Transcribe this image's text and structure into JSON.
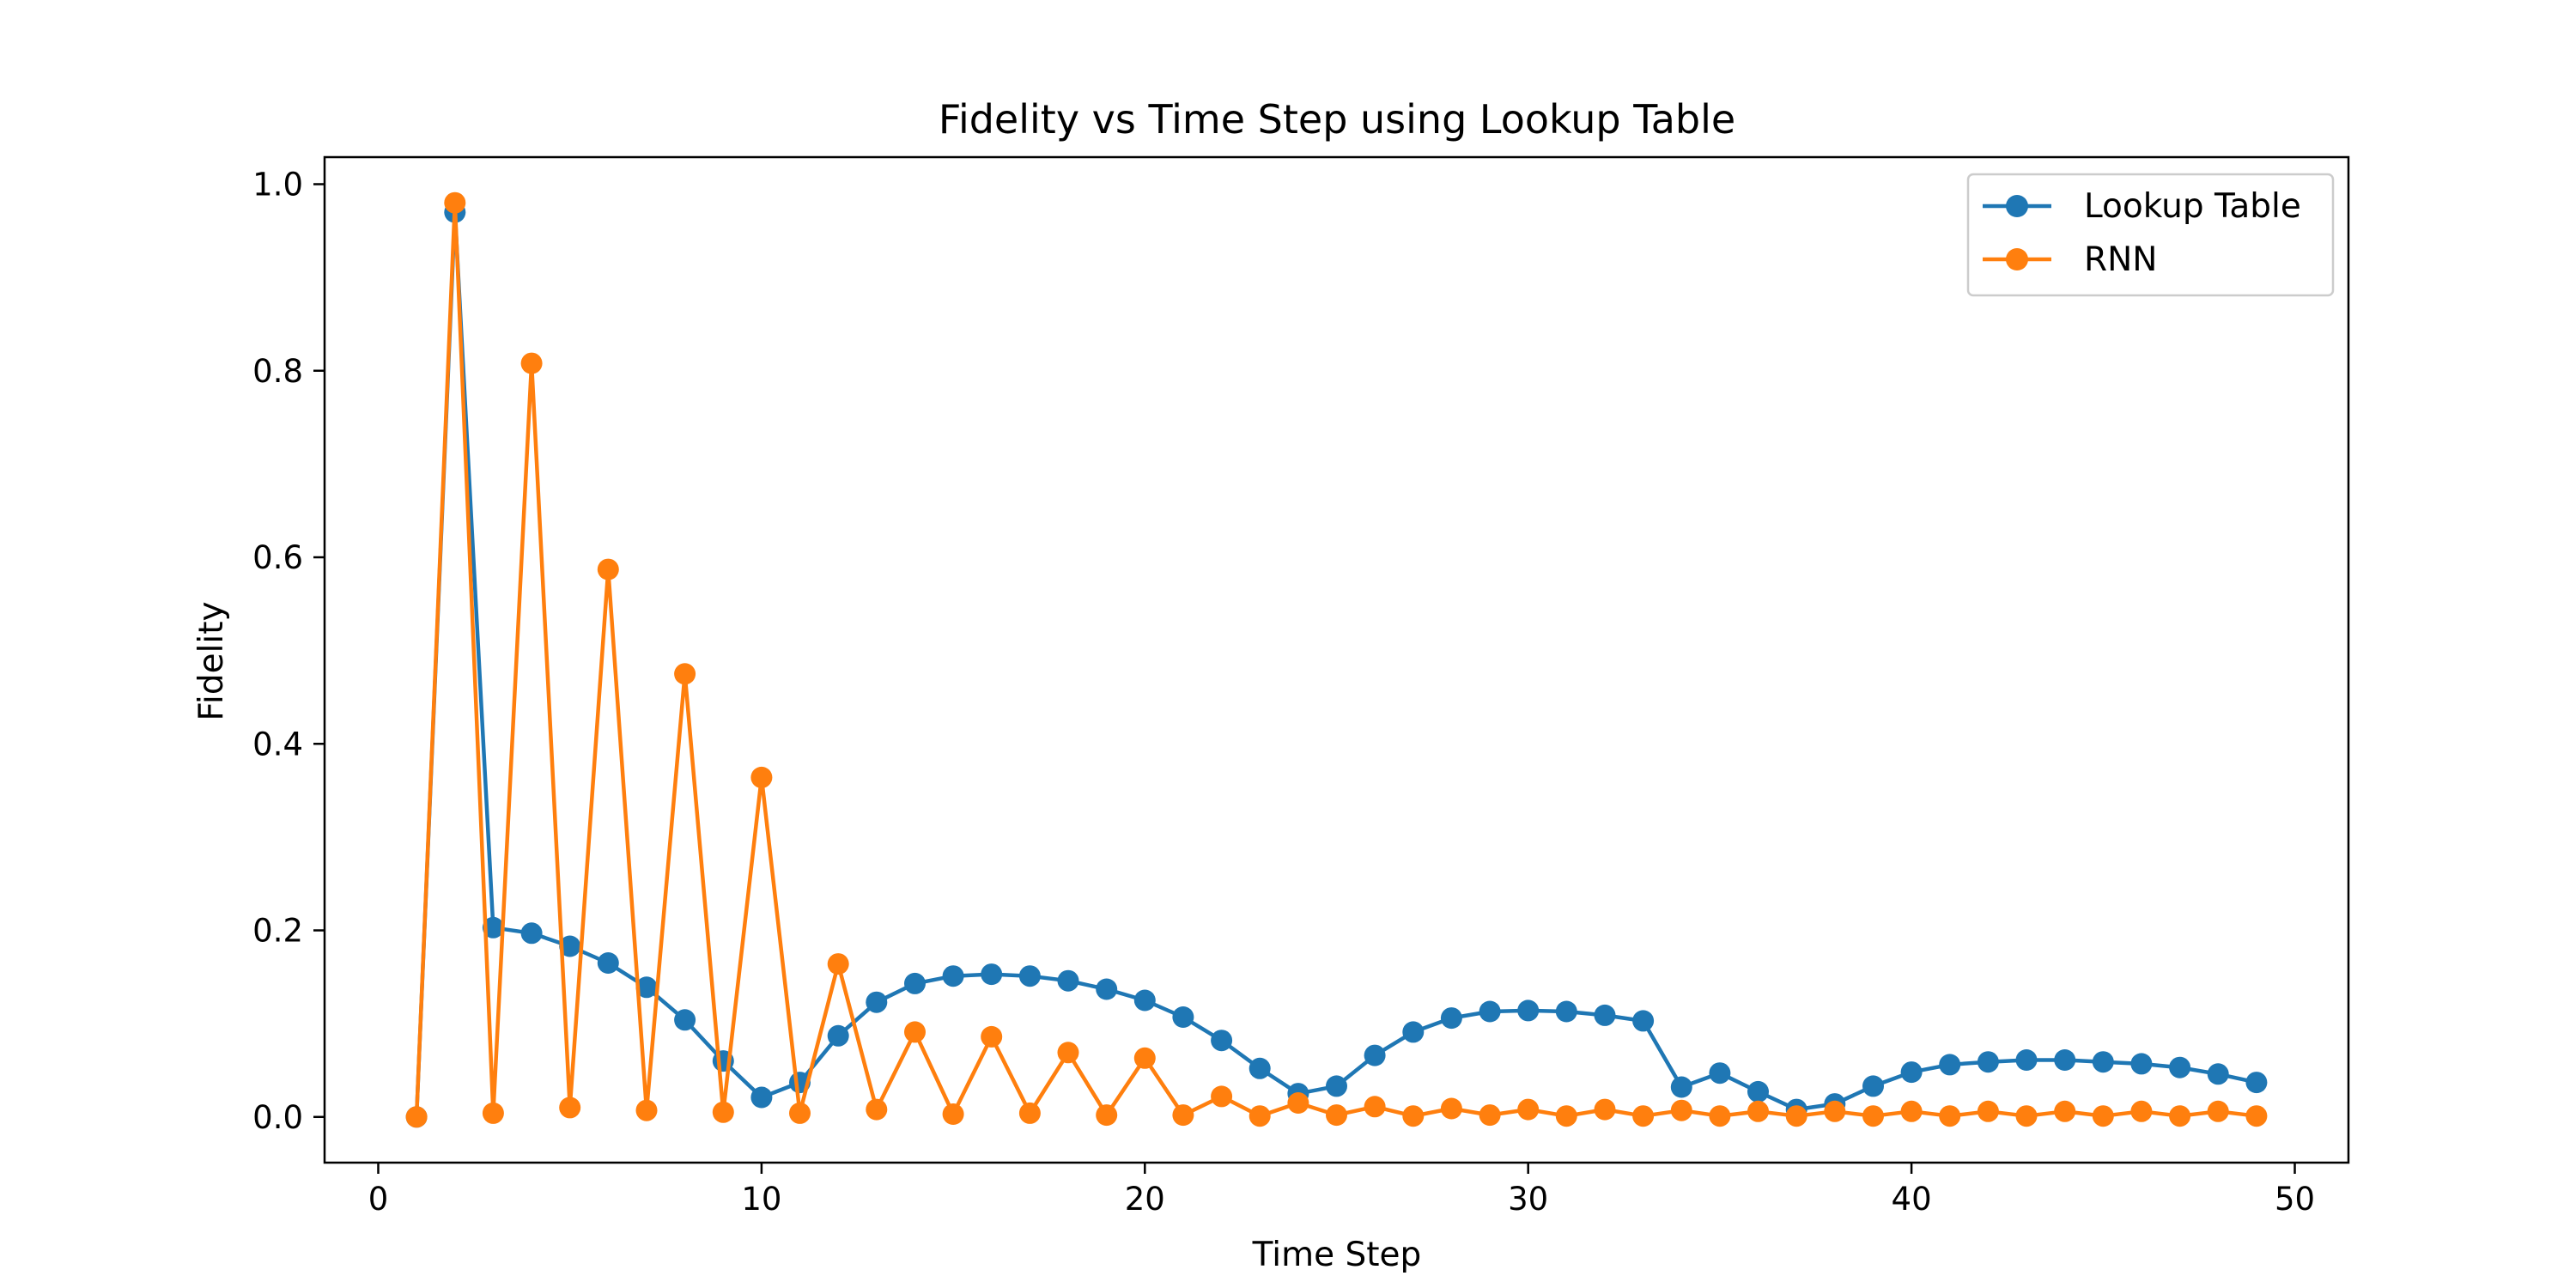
{
  "chart_data": {
    "type": "line",
    "title": "Fidelity vs Time Step using Lookup Table",
    "xlabel": "Time Step",
    "ylabel": "Fidelity",
    "xlim": [
      -1.4,
      51.4
    ],
    "ylim": [
      -0.049,
      1.029
    ],
    "xticks": [
      0,
      10,
      20,
      30,
      40,
      50
    ],
    "yticks": [
      0.0,
      0.2,
      0.4,
      0.6,
      0.8,
      1.0
    ],
    "xtick_labels": [
      "0",
      "10",
      "20",
      "30",
      "40",
      "50"
    ],
    "ytick_labels": [
      "0.0",
      "0.2",
      "0.4",
      "0.6",
      "0.8",
      "1.0"
    ],
    "grid": false,
    "legend_position": "top-right",
    "x": [
      1,
      2,
      3,
      4,
      5,
      6,
      7,
      8,
      9,
      10,
      11,
      12,
      13,
      14,
      15,
      16,
      17,
      18,
      19,
      20,
      21,
      22,
      23,
      24,
      25,
      26,
      27,
      28,
      29,
      30,
      31,
      32,
      33,
      34,
      35,
      36,
      37,
      38,
      39,
      40,
      41,
      42,
      43,
      44,
      45,
      46,
      47,
      48,
      49
    ],
    "series": [
      {
        "name": "Lookup Table",
        "color": "#1f77b4",
        "marker": "circle",
        "values": [
          0.0,
          0.97,
          0.203,
          0.197,
          0.183,
          0.165,
          0.139,
          0.104,
          0.06,
          0.021,
          0.037,
          0.087,
          0.123,
          0.143,
          0.151,
          0.153,
          0.151,
          0.146,
          0.137,
          0.125,
          0.107,
          0.082,
          0.052,
          0.025,
          0.033,
          0.066,
          0.091,
          0.106,
          0.113,
          0.114,
          0.113,
          0.109,
          0.103,
          0.032,
          0.047,
          0.027,
          0.008,
          0.014,
          0.033,
          0.048,
          0.056,
          0.059,
          0.061,
          0.061,
          0.059,
          0.057,
          0.053,
          0.046,
          0.037
        ]
      },
      {
        "name": "RNN",
        "color": "#ff7f0e",
        "marker": "circle",
        "values": [
          0.0,
          0.98,
          0.004,
          0.808,
          0.01,
          0.587,
          0.007,
          0.475,
          0.005,
          0.364,
          0.004,
          0.164,
          0.008,
          0.091,
          0.003,
          0.086,
          0.004,
          0.069,
          0.002,
          0.063,
          0.002,
          0.022,
          0.001,
          0.015,
          0.002,
          0.011,
          0.001,
          0.009,
          0.002,
          0.008,
          0.001,
          0.008,
          0.001,
          0.007,
          0.001,
          0.006,
          0.001,
          0.006,
          0.001,
          0.006,
          0.001,
          0.006,
          0.001,
          0.006,
          0.001,
          0.006,
          0.001,
          0.006,
          0.001
        ]
      }
    ]
  }
}
